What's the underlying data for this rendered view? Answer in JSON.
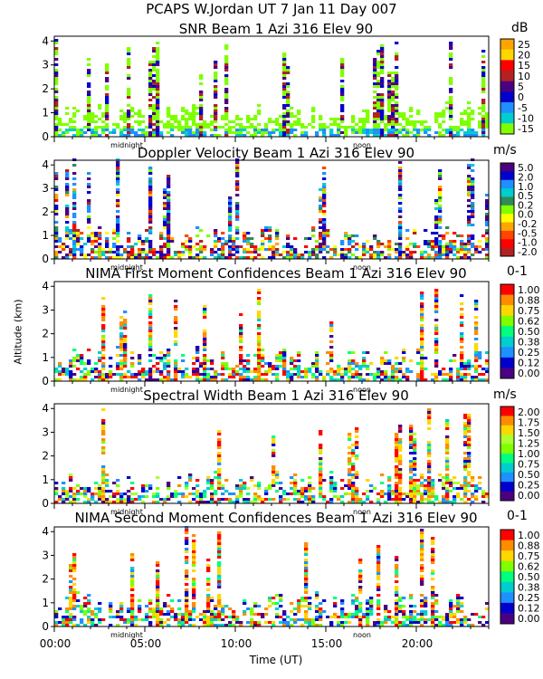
{
  "page_title": "PCAPS W.Jordan UT   7 Jan 11 Day 007",
  "y_axis_label": "Altitude (km)",
  "x_axis_label": "Time (UT)",
  "x_tick_labels": [
    "00:00",
    "05:00",
    "10:00",
    "15:00",
    "20:00"
  ],
  "marker_labels": {
    "midnight": "midnight",
    "noon": "noon"
  },
  "chart_data": [
    {
      "type": "heatmap",
      "title": "SNR Beam 1 Azi 316 Elev 90",
      "unit": "dB",
      "ylim": [
        0,
        4.2
      ],
      "y_ticks": [
        0,
        1,
        2,
        3,
        4
      ],
      "xlim": [
        0,
        24
      ],
      "colorbar": {
        "ticks": [
          "25",
          "20",
          "15",
          "10",
          "5",
          "0",
          "-5",
          "-10",
          "-15"
        ],
        "colors": [
          "#ffa500",
          "#ffd700",
          "#ff0000",
          "#b22222",
          "#4b0082",
          "#0000cd",
          "#1e90ff",
          "#00cdcd",
          "#7fff00"
        ]
      }
    },
    {
      "type": "heatmap",
      "title": "Doppler Velocity Beam 1 Azi 316 Elev 90",
      "unit": "m/s",
      "ylim": [
        0,
        4.2
      ],
      "y_ticks": [
        0,
        1,
        2,
        3,
        4
      ],
      "xlim": [
        0,
        24
      ],
      "colorbar": {
        "ticks": [
          "5.0",
          "2.0",
          "1.0",
          "0.5",
          "0.2",
          "0.0",
          "-0.2",
          "-0.5",
          "-1.0",
          "-2.0"
        ],
        "colors": [
          "#4b0082",
          "#0000cd",
          "#1e90ff",
          "#00cdcd",
          "#2e8b57",
          "#7fff00",
          "#ffff00",
          "#ffa500",
          "#ff4500",
          "#ff0000",
          "#b22222"
        ]
      }
    },
    {
      "type": "heatmap",
      "title": "NIMA First Moment Confidences Beam 1 Azi 316 Elev 90",
      "unit": "0-1",
      "ylim": [
        0,
        4.2
      ],
      "y_ticks": [
        0,
        1,
        2,
        3,
        4
      ],
      "xlim": [
        0,
        24
      ],
      "colorbar": {
        "ticks": [
          "1.00",
          "0.88",
          "0.75",
          "0.62",
          "0.50",
          "0.38",
          "0.25",
          "0.12",
          "0.00"
        ],
        "colors": [
          "#ff0000",
          "#ff8c00",
          "#ffd700",
          "#7fff00",
          "#00ff7f",
          "#00cdcd",
          "#1e90ff",
          "#0000cd",
          "#4b0082"
        ]
      }
    },
    {
      "type": "heatmap",
      "title": "Spectral Width Beam 1 Azi 316 Elev 90",
      "unit": "m/s",
      "ylim": [
        0,
        4.2
      ],
      "y_ticks": [
        0,
        1,
        2,
        3,
        4
      ],
      "xlim": [
        0,
        24
      ],
      "colorbar": {
        "ticks": [
          "2.00",
          "1.75",
          "1.50",
          "1.25",
          "1.00",
          "0.75",
          "0.50",
          "0.25",
          "0.00"
        ],
        "colors": [
          "#ff0000",
          "#ff8c00",
          "#ffd700",
          "#adff2f",
          "#7fff00",
          "#00ff7f",
          "#00cdcd",
          "#1e90ff",
          "#0000cd",
          "#4b0082"
        ]
      }
    },
    {
      "type": "heatmap",
      "title": "NIMA Second Moment Confidences Beam 1 Azi 316 Elev 90",
      "unit": "0-1",
      "ylim": [
        0,
        4.2
      ],
      "y_ticks": [
        0,
        1,
        2,
        3,
        4
      ],
      "xlim": [
        0,
        24
      ],
      "colorbar": {
        "ticks": [
          "1.00",
          "0.88",
          "0.75",
          "0.62",
          "0.50",
          "0.38",
          "0.25",
          "0.12",
          "0.00"
        ],
        "colors": [
          "#ff0000",
          "#ff8c00",
          "#ffd700",
          "#7fff00",
          "#00ff7f",
          "#00cdcd",
          "#1e90ff",
          "#0000cd",
          "#4b0082"
        ]
      }
    }
  ]
}
